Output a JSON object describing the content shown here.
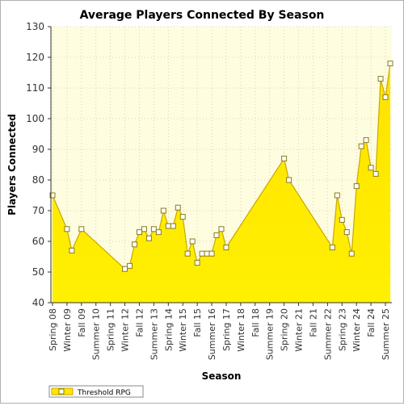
{
  "chart_data": {
    "type": "area",
    "title": "Average Players Connected By Season",
    "xlabel": "Season",
    "ylabel": "Players Connected",
    "ylim": [
      40,
      130
    ],
    "ytick_step": 10,
    "grid": true,
    "legend_position": "bottom-left",
    "colors": {
      "fill": "#ffe600",
      "line": "#c8a800",
      "plot_bg": "#fffde0",
      "marker_fill": "#ffffff",
      "marker_stroke": "#8a7a20"
    },
    "x_tick_labels": [
      "Spring 08",
      "Winter 09",
      "Fall 09",
      "Summer 10",
      "Spring 11",
      "Winter 12",
      "Fall 12",
      "Summer 13",
      "Spring 14",
      "Winter 15",
      "Fall 15",
      "Summer 16",
      "Spring 17",
      "Winter 18",
      "Fall 18",
      "Summer 19",
      "Spring 20",
      "Winter 21",
      "Fall 21",
      "Summer 22",
      "Spring 23",
      "Winter 24",
      "Fall 24",
      "Summer 25"
    ],
    "series": [
      {
        "name": "Threshold RPG",
        "points": [
          {
            "x": "Spring 08",
            "y": 75
          },
          {
            "x": "Winter 09",
            "y": 64
          },
          {
            "x": "Spring 09",
            "y": 57
          },
          {
            "x": "Fall 09",
            "y": 64
          },
          {
            "x": "Winter 12",
            "y": 51
          },
          {
            "x": "Spring 12",
            "y": 52
          },
          {
            "x": "Summer 12",
            "y": 59
          },
          {
            "x": "Fall 12",
            "y": 63
          },
          {
            "x": "Winter 13",
            "y": 64
          },
          {
            "x": "Spring 13",
            "y": 61
          },
          {
            "x": "Summer 13",
            "y": 64
          },
          {
            "x": "Fall 13",
            "y": 63
          },
          {
            "x": "Winter 14",
            "y": 70
          },
          {
            "x": "Spring 14",
            "y": 65
          },
          {
            "x": "Summer 14",
            "y": 65
          },
          {
            "x": "Fall 14",
            "y": 71
          },
          {
            "x": "Winter 15",
            "y": 68
          },
          {
            "x": "Spring 15",
            "y": 56
          },
          {
            "x": "Summer 15",
            "y": 60
          },
          {
            "x": "Fall 15",
            "y": 53
          },
          {
            "x": "Winter 16",
            "y": 56
          },
          {
            "x": "Spring 16",
            "y": 56
          },
          {
            "x": "Summer 16",
            "y": 56
          },
          {
            "x": "Fall 16",
            "y": 62
          },
          {
            "x": "Winter 17",
            "y": 64
          },
          {
            "x": "Spring 17",
            "y": 58
          },
          {
            "x": "Spring 20",
            "y": 87
          },
          {
            "x": "Summer 20",
            "y": 80
          },
          {
            "x": "Fall 22",
            "y": 58
          },
          {
            "x": "Winter 23",
            "y": 75
          },
          {
            "x": "Spring 23",
            "y": 67
          },
          {
            "x": "Summer 23",
            "y": 63
          },
          {
            "x": "Fall 23",
            "y": 56
          },
          {
            "x": "Winter 24",
            "y": 78
          },
          {
            "x": "Spring 24",
            "y": 91
          },
          {
            "x": "Summer 24",
            "y": 93
          },
          {
            "x": "Fall 24",
            "y": 84
          },
          {
            "x": "Winter 25",
            "y": 82
          },
          {
            "x": "Spring 25",
            "y": 113
          },
          {
            "x": "Summer 25",
            "y": 107
          },
          {
            "x": "Fall 25",
            "y": 118
          }
        ]
      }
    ]
  }
}
